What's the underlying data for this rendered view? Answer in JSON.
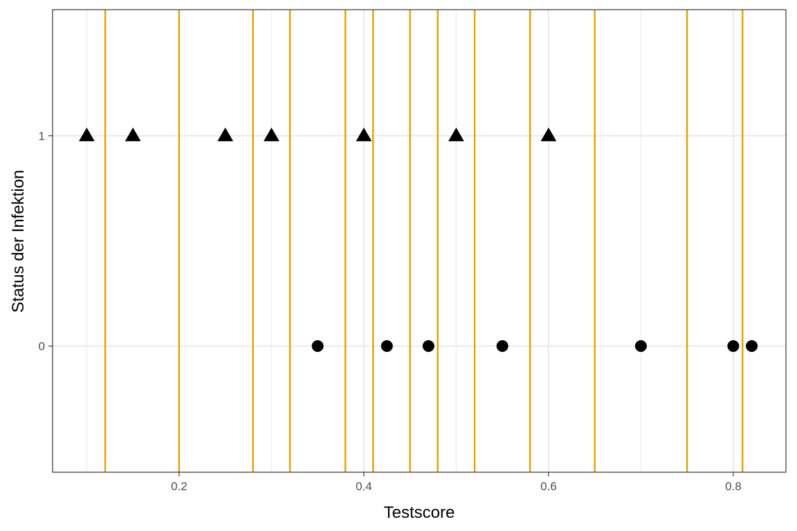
{
  "chart_data": {
    "type": "scatter",
    "title": "",
    "xlabel": "Testscore",
    "ylabel": "Status der Infektion",
    "xlim": [
      0.063,
      0.857
    ],
    "ylim": [
      -0.6,
      1.6
    ],
    "x_ticks": [
      0.2,
      0.4,
      0.6,
      0.8
    ],
    "x_tick_labels": [
      "0.2",
      "0.4",
      "0.6",
      "0.8"
    ],
    "y_ticks": [
      0,
      1
    ],
    "y_tick_labels": [
      "0",
      "1"
    ],
    "grid": true,
    "legend": "none",
    "series": [
      {
        "marker": "triangle",
        "color": "#000000",
        "points": [
          {
            "x": 0.1,
            "y": 1
          },
          {
            "x": 0.15,
            "y": 1
          },
          {
            "x": 0.25,
            "y": 1
          },
          {
            "x": 0.3,
            "y": 1
          },
          {
            "x": 0.4,
            "y": 1
          },
          {
            "x": 0.5,
            "y": 1
          },
          {
            "x": 0.6,
            "y": 1
          }
        ]
      },
      {
        "marker": "circle",
        "color": "#000000",
        "points": [
          {
            "x": 0.35,
            "y": 0
          },
          {
            "x": 0.425,
            "y": 0
          },
          {
            "x": 0.47,
            "y": 0
          },
          {
            "x": 0.55,
            "y": 0
          },
          {
            "x": 0.7,
            "y": 0
          },
          {
            "x": 0.8,
            "y": 0
          },
          {
            "x": 0.82,
            "y": 0
          }
        ]
      }
    ],
    "vlines": {
      "color": "#E69F00",
      "x": [
        0.12,
        0.2,
        0.28,
        0.32,
        0.38,
        0.41,
        0.45,
        0.48,
        0.52,
        0.58,
        0.65,
        0.75,
        0.81
      ]
    }
  }
}
